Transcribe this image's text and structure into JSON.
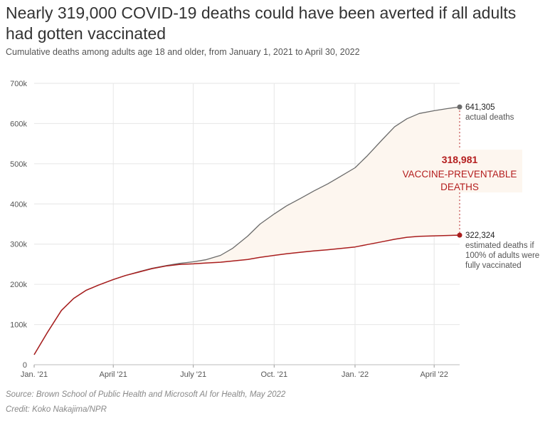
{
  "header": {
    "title": "Nearly 319,000 COVID-19 deaths could have been averted if all adults had gotten vaccinated",
    "subtitle": "Cumulative deaths among adults age 18 and older, from January 1, 2021 to April 30, 2022"
  },
  "footer": {
    "source": "Source: Brown School of Public Health and Microsoft AI for Health, May 2022",
    "credit": "Credit: Koko Nakajima/NPR"
  },
  "colors": {
    "actual": "#6b6b6b",
    "vaccinated": "#a91d1d",
    "fill": "#fdf6ef",
    "grid": "#e6e6e6",
    "annotation": "#b41e1e"
  },
  "chart_data": {
    "type": "line",
    "x_unit": "date",
    "xlim": [
      "2021-01-01",
      "2022-04-30"
    ],
    "ylim": [
      0,
      700000
    ],
    "y_ticks": [
      {
        "value": 0,
        "label": "0"
      },
      {
        "value": 100000,
        "label": "100k"
      },
      {
        "value": 200000,
        "label": "200k"
      },
      {
        "value": 300000,
        "label": "300k"
      },
      {
        "value": 400000,
        "label": "400k"
      },
      {
        "value": 500000,
        "label": "500k"
      },
      {
        "value": 600000,
        "label": "600k"
      },
      {
        "value": 700000,
        "label": "700k"
      }
    ],
    "x_ticks": [
      {
        "date": "2021-01-01",
        "label": "Jan. '21"
      },
      {
        "date": "2021-04-01",
        "label": "April '21"
      },
      {
        "date": "2021-07-01",
        "label": "July '21"
      },
      {
        "date": "2021-10-01",
        "label": "Oct. '21"
      },
      {
        "date": "2022-01-01",
        "label": "Jan. '22"
      },
      {
        "date": "2022-04-01",
        "label": "April '22"
      }
    ],
    "grid": true,
    "series": [
      {
        "key": "actual",
        "points": [
          [
            "2021-01-01",
            25000
          ],
          [
            "2021-01-16",
            80000
          ],
          [
            "2021-02-01",
            135000
          ],
          [
            "2021-02-15",
            165000
          ],
          [
            "2021-03-01",
            185000
          ],
          [
            "2021-03-15",
            198000
          ],
          [
            "2021-04-01",
            212000
          ],
          [
            "2021-04-15",
            222000
          ],
          [
            "2021-05-01",
            232000
          ],
          [
            "2021-05-15",
            240000
          ],
          [
            "2021-06-01",
            247000
          ],
          [
            "2021-06-15",
            252000
          ],
          [
            "2021-07-01",
            256000
          ],
          [
            "2021-07-15",
            261000
          ],
          [
            "2021-08-01",
            272000
          ],
          [
            "2021-08-15",
            290000
          ],
          [
            "2021-09-01",
            320000
          ],
          [
            "2021-09-15",
            350000
          ],
          [
            "2021-10-01",
            375000
          ],
          [
            "2021-10-15",
            395000
          ],
          [
            "2021-11-01",
            415000
          ],
          [
            "2021-11-15",
            432000
          ],
          [
            "2021-12-01",
            450000
          ],
          [
            "2021-12-15",
            468000
          ],
          [
            "2022-01-01",
            490000
          ],
          [
            "2022-01-15",
            520000
          ],
          [
            "2022-02-01",
            560000
          ],
          [
            "2022-02-15",
            592000
          ],
          [
            "2022-03-01",
            612000
          ],
          [
            "2022-03-15",
            625000
          ],
          [
            "2022-04-01",
            632000
          ],
          [
            "2022-04-15",
            637000
          ],
          [
            "2022-04-30",
            641305
          ]
        ]
      },
      {
        "key": "vaccinated",
        "points": [
          [
            "2021-01-01",
            25000
          ],
          [
            "2021-01-16",
            80000
          ],
          [
            "2021-02-01",
            135000
          ],
          [
            "2021-02-15",
            165000
          ],
          [
            "2021-03-01",
            185000
          ],
          [
            "2021-03-15",
            198000
          ],
          [
            "2021-04-01",
            212000
          ],
          [
            "2021-04-15",
            222000
          ],
          [
            "2021-05-01",
            231000
          ],
          [
            "2021-05-15",
            239000
          ],
          [
            "2021-06-01",
            246000
          ],
          [
            "2021-06-15",
            249500
          ],
          [
            "2021-07-01",
            251000
          ],
          [
            "2021-07-15",
            253000
          ],
          [
            "2021-08-01",
            255000
          ],
          [
            "2021-08-15",
            258000
          ],
          [
            "2021-09-01",
            262000
          ],
          [
            "2021-09-15",
            267000
          ],
          [
            "2021-10-01",
            272000
          ],
          [
            "2021-10-15",
            276000
          ],
          [
            "2021-11-01",
            280000
          ],
          [
            "2021-11-15",
            283000
          ],
          [
            "2021-12-01",
            286000
          ],
          [
            "2021-12-15",
            289000
          ],
          [
            "2022-01-01",
            293000
          ],
          [
            "2022-01-15",
            299000
          ],
          [
            "2022-02-01",
            306000
          ],
          [
            "2022-02-15",
            312000
          ],
          [
            "2022-03-01",
            317000
          ],
          [
            "2022-03-15",
            319500
          ],
          [
            "2022-04-01",
            320500
          ],
          [
            "2022-04-15",
            321500
          ],
          [
            "2022-04-30",
            322324
          ]
        ]
      }
    ],
    "annotations": {
      "actual_value": "641,305",
      "actual_label": "actual deaths",
      "vaccinated_value": "322,324",
      "vaccinated_label_lines": [
        "estimated deaths if",
        "100% of adults were",
        "fully vaccinated"
      ],
      "gap_value": "318,981",
      "gap_label_lines": [
        "VACCINE-PREVENTABLE",
        "DEATHS"
      ]
    }
  }
}
